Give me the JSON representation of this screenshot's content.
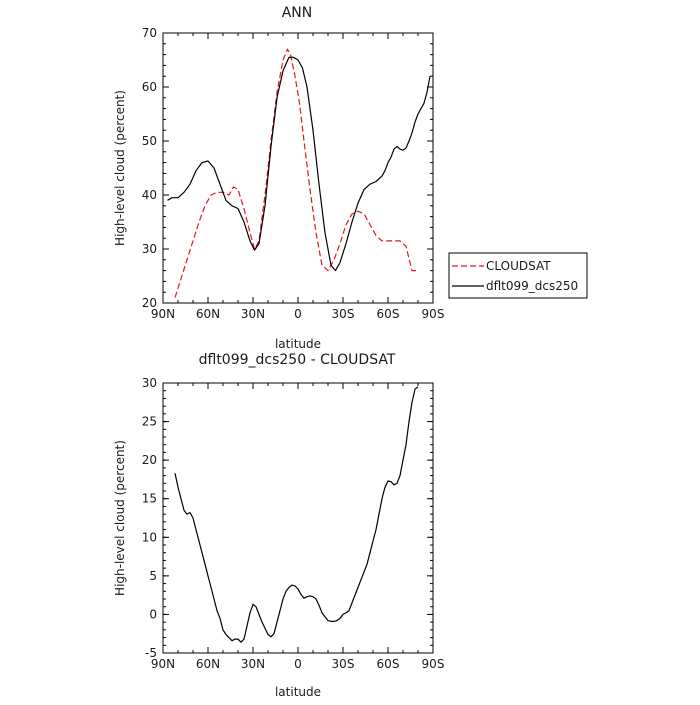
{
  "chart_data": [
    {
      "type": "line",
      "title": "ANN",
      "xlabel": "latitude",
      "ylabel": "High-level cloud (percent)",
      "x_ticks": [
        {
          "value": -90,
          "label": "90N"
        },
        {
          "value": -60,
          "label": "60N"
        },
        {
          "value": -30,
          "label": "30N"
        },
        {
          "value": 0,
          "label": "0"
        },
        {
          "value": 30,
          "label": "30S"
        },
        {
          "value": 60,
          "label": "60S"
        },
        {
          "value": 90,
          "label": "90S"
        }
      ],
      "xlim": [
        -90,
        90
      ],
      "ylim": [
        20,
        70
      ],
      "y_ticks": [
        20,
        30,
        40,
        50,
        60,
        70
      ],
      "legend_position": "right",
      "series": [
        {
          "name": "CLOUDSAT",
          "color": "#e8141e",
          "dash": "dashed",
          "x": [
            -82,
            -78,
            -74,
            -70,
            -66,
            -62,
            -58,
            -54,
            -50,
            -46,
            -43,
            -40,
            -36,
            -32,
            -29,
            -26,
            -22,
            -18,
            -14,
            -10,
            -7,
            -5,
            -2,
            1,
            4,
            8,
            12,
            16,
            20,
            24,
            28,
            32,
            36,
            40,
            44,
            48,
            52,
            56,
            60,
            64,
            68,
            72,
            76,
            80
          ],
          "y": [
            21,
            24.5,
            28,
            31.5,
            35,
            38,
            40,
            40.5,
            40.5,
            40,
            41.5,
            41,
            37.5,
            33,
            30,
            31.5,
            40,
            50,
            59,
            65,
            67,
            66,
            62,
            57,
            50,
            41,
            33,
            27,
            26,
            28,
            31,
            34.5,
            36.5,
            37,
            36.5,
            34.5,
            32.5,
            31.5,
            31.5,
            31.5,
            31.5,
            30.5,
            26,
            26
          ]
        },
        {
          "name": "dflt099_dcs250",
          "color": "#000000",
          "dash": "solid",
          "x": [
            -87,
            -84,
            -80,
            -76,
            -72,
            -68,
            -64,
            -60,
            -56,
            -52,
            -48,
            -44,
            -40,
            -36,
            -32,
            -29,
            -26,
            -22,
            -18,
            -14,
            -10,
            -6,
            -3,
            0,
            3,
            6,
            10,
            14,
            18,
            22,
            25,
            28,
            32,
            36,
            40,
            44,
            48,
            52,
            56,
            58,
            60,
            62,
            64,
            66,
            68,
            70,
            72,
            74,
            76,
            78,
            80,
            82,
            84,
            86,
            88
          ],
          "y": [
            39,
            39.5,
            39.5,
            40.5,
            42,
            44.5,
            46,
            46.3,
            45,
            42,
            39,
            38,
            37.5,
            35,
            31.5,
            29.8,
            31,
            38,
            49,
            58,
            63,
            65.5,
            65.5,
            65,
            63.5,
            60,
            52,
            42,
            33,
            27,
            26,
            27.5,
            31,
            35,
            38.5,
            41,
            42,
            42.5,
            43.5,
            44.5,
            46,
            47,
            48.5,
            49,
            48.5,
            48.3,
            48.7,
            50,
            51.5,
            53.5,
            55,
            56,
            57,
            59,
            62
          ]
        }
      ]
    },
    {
      "type": "line",
      "title": "dflt099_dcs250 - CLOUDSAT",
      "xlabel": "latitude",
      "ylabel": "High-level cloud (percent)",
      "x_ticks": [
        {
          "value": -90,
          "label": "90N"
        },
        {
          "value": -60,
          "label": "60N"
        },
        {
          "value": -30,
          "label": "30N"
        },
        {
          "value": 0,
          "label": "0"
        },
        {
          "value": 30,
          "label": "30S"
        },
        {
          "value": 60,
          "label": "60S"
        },
        {
          "value": 90,
          "label": "90S"
        }
      ],
      "xlim": [
        -90,
        90
      ],
      "ylim": [
        -5,
        30
      ],
      "y_ticks": [
        -5,
        0,
        5,
        10,
        15,
        20,
        25,
        30
      ],
      "series": [
        {
          "color": "#000000",
          "dash": "solid",
          "x": [
            -82,
            -80,
            -78,
            -76,
            -74,
            -72,
            -70,
            -68,
            -66,
            -64,
            -62,
            -60,
            -58,
            -56,
            -54,
            -52,
            -50,
            -48,
            -46,
            -44,
            -42,
            -40,
            -38,
            -36,
            -34,
            -32,
            -30,
            -28,
            -26,
            -24,
            -22,
            -20,
            -18,
            -16,
            -14,
            -12,
            -10,
            -8,
            -6,
            -4,
            -2,
            0,
            2,
            4,
            6,
            8,
            10,
            12,
            14,
            16,
            18,
            20,
            22,
            24,
            26,
            28,
            30,
            32,
            34,
            36,
            38,
            40,
            42,
            44,
            46,
            48,
            50,
            52,
            54,
            56,
            58,
            60,
            62,
            64,
            66,
            68,
            70,
            72,
            74,
            76,
            78,
            80
          ],
          "y": [
            18.3,
            16.5,
            15,
            13.5,
            13,
            13.2,
            12.5,
            11,
            9.5,
            8,
            6.5,
            5,
            3.5,
            2,
            0.5,
            -0.5,
            -2,
            -2.6,
            -3,
            -3.4,
            -3.2,
            -3.2,
            -3.6,
            -3.2,
            -1.5,
            0.2,
            1.3,
            1,
            0,
            -1,
            -1.8,
            -2.6,
            -2.9,
            -2.5,
            -1,
            0.5,
            2,
            3,
            3.5,
            3.8,
            3.7,
            3.3,
            2.6,
            2.1,
            2.3,
            2.4,
            2.3,
            2,
            1.2,
            0.2,
            -0.3,
            -0.8,
            -0.9,
            -0.9,
            -0.8,
            -0.5,
            0,
            0.2,
            0.5,
            1.5,
            2.5,
            3.5,
            4.5,
            5.5,
            6.5,
            8,
            9.5,
            11,
            13,
            15,
            16.5,
            17.3,
            17.2,
            16.8,
            17,
            18,
            20,
            22,
            25,
            27.5,
            29.2,
            29.5
          ]
        }
      ]
    }
  ]
}
